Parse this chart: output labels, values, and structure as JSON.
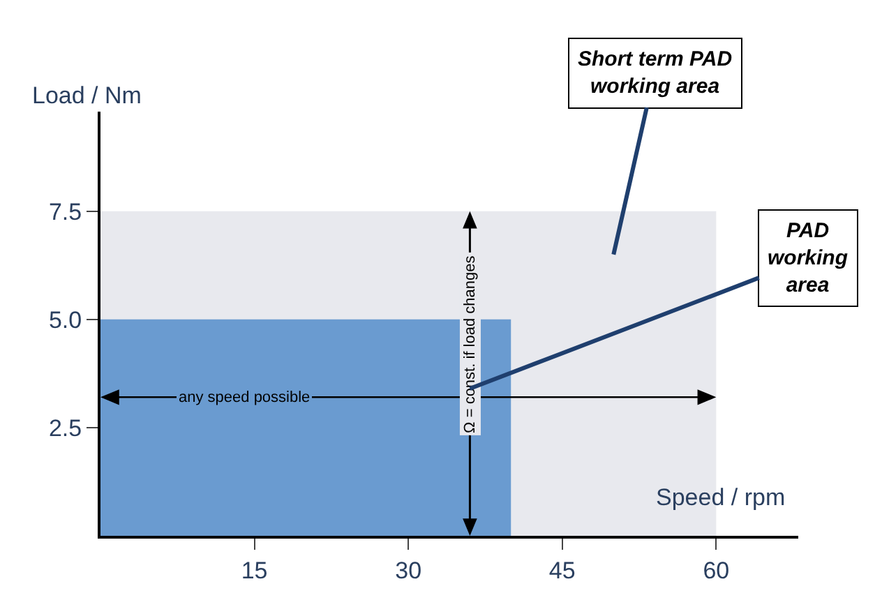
{
  "chart_data": {
    "type": "area",
    "xlabel": "Speed / rpm",
    "ylabel": "Load / Nm",
    "series": [
      {
        "name": "Short term PAD working area",
        "color": "#e8e9ee",
        "x": [
          0,
          60
        ],
        "values": [
          7.5,
          7.5
        ]
      },
      {
        "name": "PAD working area",
        "color": "#6a9bd0",
        "x": [
          0,
          40
        ],
        "values": [
          5.0,
          5.0
        ]
      }
    ],
    "xlim": [
      0,
      68
    ],
    "ylim": [
      0,
      9.8
    ],
    "xticks": [
      15,
      30,
      45,
      60
    ],
    "yticks": [
      2.5,
      {
        "value": 5,
        "label": "5.0"
      },
      7.5
    ],
    "legend": false,
    "marker": "none",
    "annotations": [
      "any speed possible",
      "Ω = const. if load changes"
    ]
  }
}
